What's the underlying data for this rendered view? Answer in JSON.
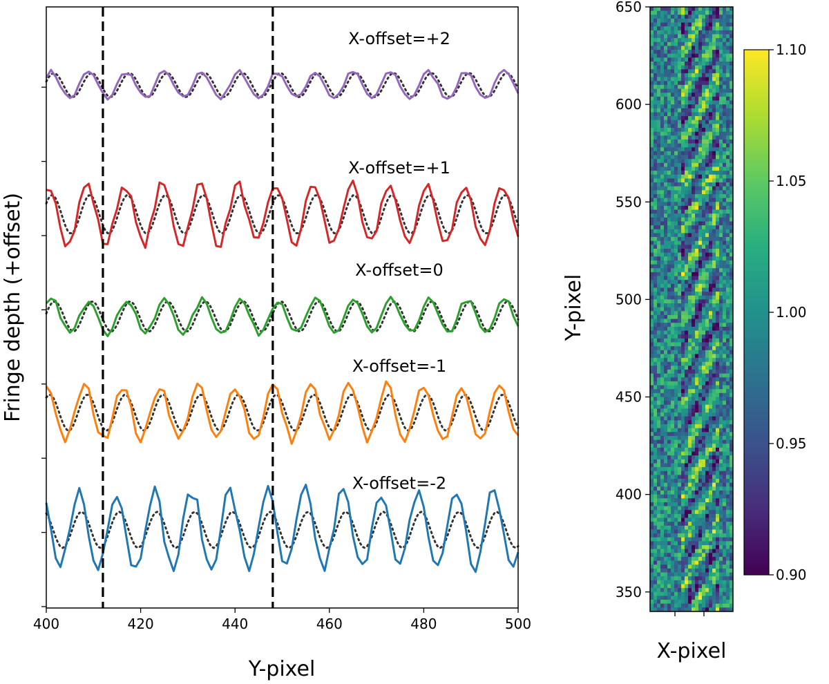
{
  "chart_data": [
    {
      "type": "line",
      "panel": "left",
      "xlabel": "Y-pixel",
      "ylabel": "Fringe depth (+offset)",
      "xlim": [
        400,
        500
      ],
      "ylim": [
        0,
        1
      ],
      "x_ticks": [
        400,
        420,
        440,
        460,
        480,
        500
      ],
      "y_tick_count": 8,
      "y_tick_labels_shown": false,
      "reference_vlines": [
        412,
        448
      ],
      "reference_line_style": "black dashed",
      "model_style": "black dotted",
      "fringe_period": 8,
      "series": [
        {
          "name": "X-offset=+2",
          "color": "#9467bd",
          "baseline": 0.87,
          "data_amplitude": 0.022,
          "model_amplitude": 0.02,
          "phase_shift": 0.3
        },
        {
          "name": "X-offset=+1",
          "color": "#d62728",
          "baseline": 0.655,
          "data_amplitude": 0.05,
          "model_amplitude": 0.032,
          "phase_shift": 0.6
        },
        {
          "name": "X-offset=0",
          "color": "#2ca02c",
          "baseline": 0.485,
          "data_amplitude": 0.028,
          "model_amplitude": 0.025,
          "phase_shift": 0.2
        },
        {
          "name": "X-offset=-1",
          "color": "#ff7f0e",
          "baseline": 0.325,
          "data_amplitude": 0.045,
          "model_amplitude": 0.03,
          "phase_shift": 1.0
        },
        {
          "name": "X-offset=-2",
          "color": "#1f77b4",
          "baseline": 0.13,
          "data_amplitude": 0.065,
          "model_amplitude": 0.03,
          "phase_shift": 2.0
        }
      ]
    },
    {
      "type": "heatmap",
      "panel": "right",
      "xlabel": "X-pixel",
      "ylabel": "Y-pixel",
      "ylim": [
        340,
        650
      ],
      "y_ticks": [
        350,
        400,
        450,
        500,
        550,
        600,
        650
      ],
      "colormap": "viridis",
      "colorbar": {
        "vmin": 0.9,
        "vmax": 1.1,
        "ticks": [
          "0.90",
          "0.95",
          "1.00",
          "1.05",
          "1.10"
        ]
      }
    }
  ]
}
